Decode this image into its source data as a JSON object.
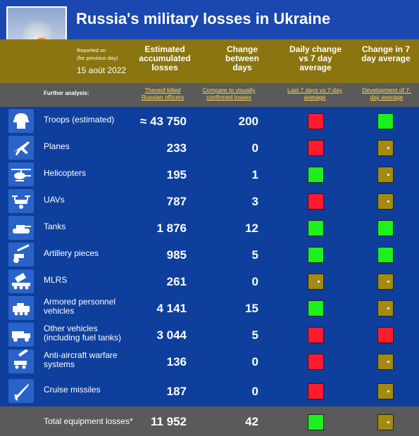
{
  "title": "Russia's military losses in Ukraine",
  "reported": {
    "line1": "Reported on",
    "line2": "(for previous day)",
    "date": "15 août 2022"
  },
  "columns": {
    "estimated": "Estimated accumulated losses",
    "change": "Change between days",
    "daily": "Daily change vs 7 day average",
    "seven": "Change in 7 day average"
  },
  "analysis": {
    "label": "Further analysis:",
    "links": [
      "Thereof killed Russian officers",
      "Compare to visually confirmed losses",
      "Last 7 days vs 7-day average",
      "Development of 7-day average"
    ]
  },
  "rows": [
    {
      "label": "Troops (estimated)",
      "value": "≈ 43 750",
      "change": "200",
      "daily": "red",
      "seven": "green",
      "icon": "soldier-icon"
    },
    {
      "label": "Planes",
      "value": "233",
      "change": "0",
      "daily": "red",
      "seven": "neutral",
      "icon": "plane-icon"
    },
    {
      "label": "Helicopters",
      "value": "195",
      "change": "1",
      "daily": "green",
      "seven": "neutral",
      "icon": "helicopter-icon"
    },
    {
      "label": "UAVs",
      "value": "787",
      "change": "3",
      "daily": "red",
      "seven": "neutral",
      "icon": "drone-icon"
    },
    {
      "label": "Tanks",
      "value": "1 876",
      "change": "12",
      "daily": "green",
      "seven": "green",
      "icon": "tank-icon"
    },
    {
      "label": "Artillery pieces",
      "value": "985",
      "change": "5",
      "daily": "green",
      "seven": "green",
      "icon": "artillery-icon"
    },
    {
      "label": "MLRS",
      "value": "261",
      "change": "0",
      "daily": "neutral",
      "seven": "neutral",
      "icon": "mlrs-icon"
    },
    {
      "label": "Armored personnel vehicles",
      "value": "4 141",
      "change": "15",
      "daily": "green",
      "seven": "neutral",
      "icon": "apc-icon"
    },
    {
      "label": "Other vehicles (including fuel tanks)",
      "value": "3 044",
      "change": "5",
      "daily": "red",
      "seven": "red",
      "icon": "truck-icon"
    },
    {
      "label": "Anti-aircraft warfare systems",
      "value": "136",
      "change": "0",
      "daily": "red",
      "seven": "neutral",
      "icon": "anti-aircraft-icon"
    },
    {
      "label": "Cruise missiles",
      "value": "187",
      "change": "0",
      "daily": "red",
      "seven": "neutral",
      "icon": "missile-icon"
    }
  ],
  "total": {
    "label": "Total equipment losses*",
    "value": "11 952",
    "change": "42",
    "daily": "green",
    "seven": "neutral"
  },
  "colors": {
    "red": "#ff1a2e",
    "green": "#1ef01e",
    "neutral": "#a58a12",
    "header_gold": "#8a7510",
    "background_blue": "#0e3f9c"
  }
}
